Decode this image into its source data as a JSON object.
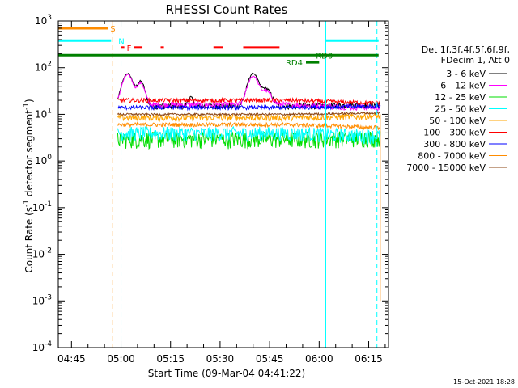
{
  "chart_data": {
    "type": "line",
    "title": "RHESSI Count Rates",
    "xlabel": "Start Time (09-Mar-04 04:41:22)",
    "ylabel_parts": {
      "main": "Count Rate (s",
      "sup1": "-1",
      "mid": " detector segment",
      "sup2": "-1",
      "end": ")"
    },
    "yscale": "log",
    "ylim": [
      0.0001,
      1000
    ],
    "xlim_minutes_after_0441": [
      0,
      100
    ],
    "y_ticks": [
      {
        "value": 0.0001,
        "base": "10",
        "exp": "-4"
      },
      {
        "value": 0.001,
        "base": "10",
        "exp": "-3"
      },
      {
        "value": 0.01,
        "base": "10",
        "exp": "-2"
      },
      {
        "value": 0.1,
        "base": "10",
        "exp": "-1"
      },
      {
        "value": 1,
        "base": "10",
        "exp": "0"
      },
      {
        "value": 10,
        "base": "10",
        "exp": "1"
      },
      {
        "value": 100,
        "base": "10",
        "exp": "2"
      },
      {
        "value": 1000,
        "base": "10",
        "exp": "3"
      }
    ],
    "x_ticks": [
      {
        "t": 4,
        "label": "04:45"
      },
      {
        "t": 19,
        "label": "05:00"
      },
      {
        "t": 34,
        "label": "05:15"
      },
      {
        "t": 49,
        "label": "05:30"
      },
      {
        "t": 64,
        "label": "05:45"
      },
      {
        "t": 79,
        "label": "06:00"
      },
      {
        "t": 94,
        "label": "06:15"
      }
    ],
    "legend_header": [
      "Det 1f,3f,4f,5f,6f,9f,",
      "FDecim 1, Att 0"
    ],
    "legend_placement": "right",
    "series": [
      {
        "name": "3 - 6 keV",
        "color": "#000000",
        "base": 15,
        "noise": 0.15,
        "peaks": [
          [
            21,
            60,
            2
          ],
          [
            25,
            35,
            1.5
          ],
          [
            40,
            8,
            1
          ],
          [
            59,
            60,
            2
          ],
          [
            63,
            20,
            2
          ]
        ]
      },
      {
        "name": "6 - 12 keV",
        "color": "#ff00ff",
        "base": 16,
        "noise": 0.15,
        "peaks": [
          [
            21,
            55,
            2
          ],
          [
            25,
            30,
            1.5
          ],
          [
            59,
            50,
            2
          ],
          [
            63,
            15,
            2
          ]
        ]
      },
      {
        "name": "12 - 25 keV",
        "color": "#00dd00",
        "base": 3,
        "noise": 0.4,
        "peaks": []
      },
      {
        "name": "25 - 50 keV",
        "color": "#00ffff",
        "base": 4,
        "noise": 0.35,
        "peaks": []
      },
      {
        "name": "50 - 100 keV",
        "color": "#ffa500",
        "base": 8.5,
        "noise": 0.15,
        "peaks": []
      },
      {
        "name": "100 - 300 keV",
        "color": "#ff0000",
        "base": 20,
        "noise": 0.1,
        "peaks": []
      },
      {
        "name": "300 - 800 keV",
        "color": "#0000ff",
        "base": 14,
        "noise": 0.1,
        "peaks": []
      },
      {
        "name": "800 - 7000 keV",
        "color": "#ff8c00",
        "base": 6,
        "noise": 0.1,
        "peaks": []
      },
      {
        "name": "7000 - 15000 keV",
        "color": "#8b4513",
        "base": 10,
        "noise": 0.05,
        "peaks": []
      }
    ],
    "data_range_minutes": [
      18,
      97.5
    ],
    "vlines": [
      {
        "t": 0,
        "color": "#00ffff",
        "style": "solid"
      },
      {
        "t": 16.5,
        "color": "#ff8c00",
        "style": "dashed"
      },
      {
        "t": 19,
        "color": "#00ffff",
        "style": "dashed"
      },
      {
        "t": 81,
        "color": "#00ffff",
        "style": "solid"
      },
      {
        "t": 96.5,
        "color": "#00ffff",
        "style": "dashed"
      }
    ],
    "status_bars": [
      {
        "label": "S",
        "color": "#ff8c00",
        "y": 700,
        "segments": [
          [
            0,
            15
          ]
        ]
      },
      {
        "label": "N",
        "color": "#00ffff",
        "y": 380,
        "segments": [
          [
            0,
            16
          ],
          [
            81,
            97
          ]
        ]
      },
      {
        "label": "F",
        "color": "#ff0000",
        "y": 270,
        "segments": [
          [
            19,
            20
          ],
          [
            23,
            25.5
          ],
          [
            31,
            32
          ],
          [
            47,
            50
          ],
          [
            56,
            67
          ]
        ]
      },
      {
        "label": "RD0",
        "color": "#008000",
        "y": 185,
        "segments": [
          [
            0,
            97
          ]
        ]
      },
      {
        "label": "RD4",
        "color": "#008000",
        "y": 130,
        "segments": [
          [
            75,
            79
          ]
        ]
      }
    ],
    "timestamp": "15-Oct-2021 18:28"
  }
}
